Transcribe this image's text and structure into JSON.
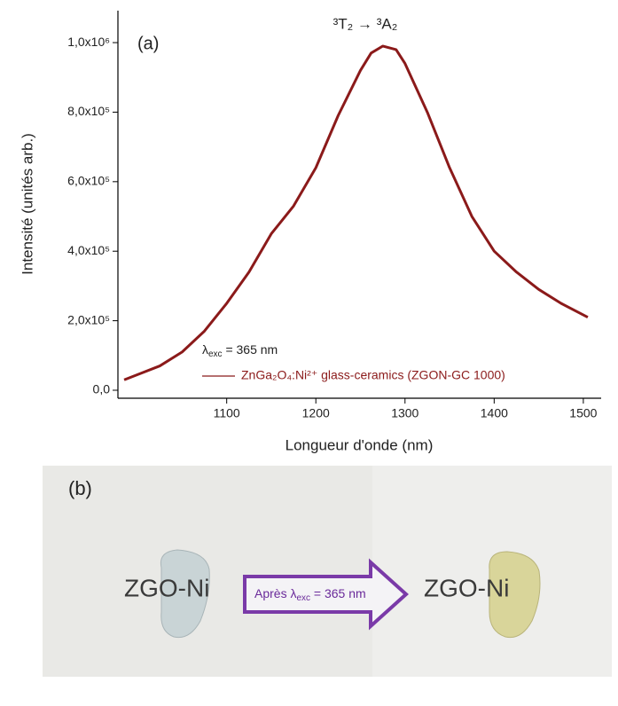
{
  "chart_data": {
    "type": "line",
    "x_label": "Longueur d'onde (nm)",
    "y_label": "Intensité (unités arb.)",
    "annotations": {
      "panel": "(a)",
      "transition": "³T₂ → ³A₂",
      "excitation": {
        "symbol": "λ",
        "sub": "exc",
        "rest": " = 365 nm"
      }
    },
    "x": [
      985,
      1000,
      1025,
      1050,
      1075,
      1100,
      1125,
      1150,
      1175,
      1200,
      1225,
      1250,
      1262,
      1275,
      1290,
      1300,
      1325,
      1350,
      1375,
      1400,
      1425,
      1450,
      1475,
      1505
    ],
    "series": [
      {
        "name": "ZnGa₂O₄:Ni²⁺ glass-ceramics (ZGON-GC 1000)",
        "color": "#8b1a1a",
        "values": [
          30000,
          45000,
          70000,
          110000,
          170000,
          250000,
          340000,
          450000,
          530000,
          640000,
          790000,
          920000,
          970000,
          990000,
          980000,
          940000,
          800000,
          640000,
          500000,
          400000,
          340000,
          290000,
          250000,
          210000
        ]
      }
    ],
    "xlim": [
      978,
      1520
    ],
    "xticks": [
      1100,
      1200,
      1300,
      1400,
      1500
    ],
    "ylim": [
      -23000,
      1092000
    ],
    "yticks": [
      {
        "value": 0,
        "label": "0,0"
      },
      {
        "value": 200000,
        "label": "2,0x10⁵"
      },
      {
        "value": 400000,
        "label": "4,0x10⁵"
      },
      {
        "value": 600000,
        "label": "6,0x10⁵"
      },
      {
        "value": 800000,
        "label": "8,0x10⁵"
      },
      {
        "value": 1000000,
        "label": "1,0x10⁶"
      }
    ]
  },
  "photo": {
    "panel": "(b)",
    "left_label": "ZGO-Ni",
    "right_label": "ZGO-Ni",
    "arrow_text": {
      "before": "Après λ",
      "sub": "exc",
      "after": " = 365 nm"
    }
  }
}
